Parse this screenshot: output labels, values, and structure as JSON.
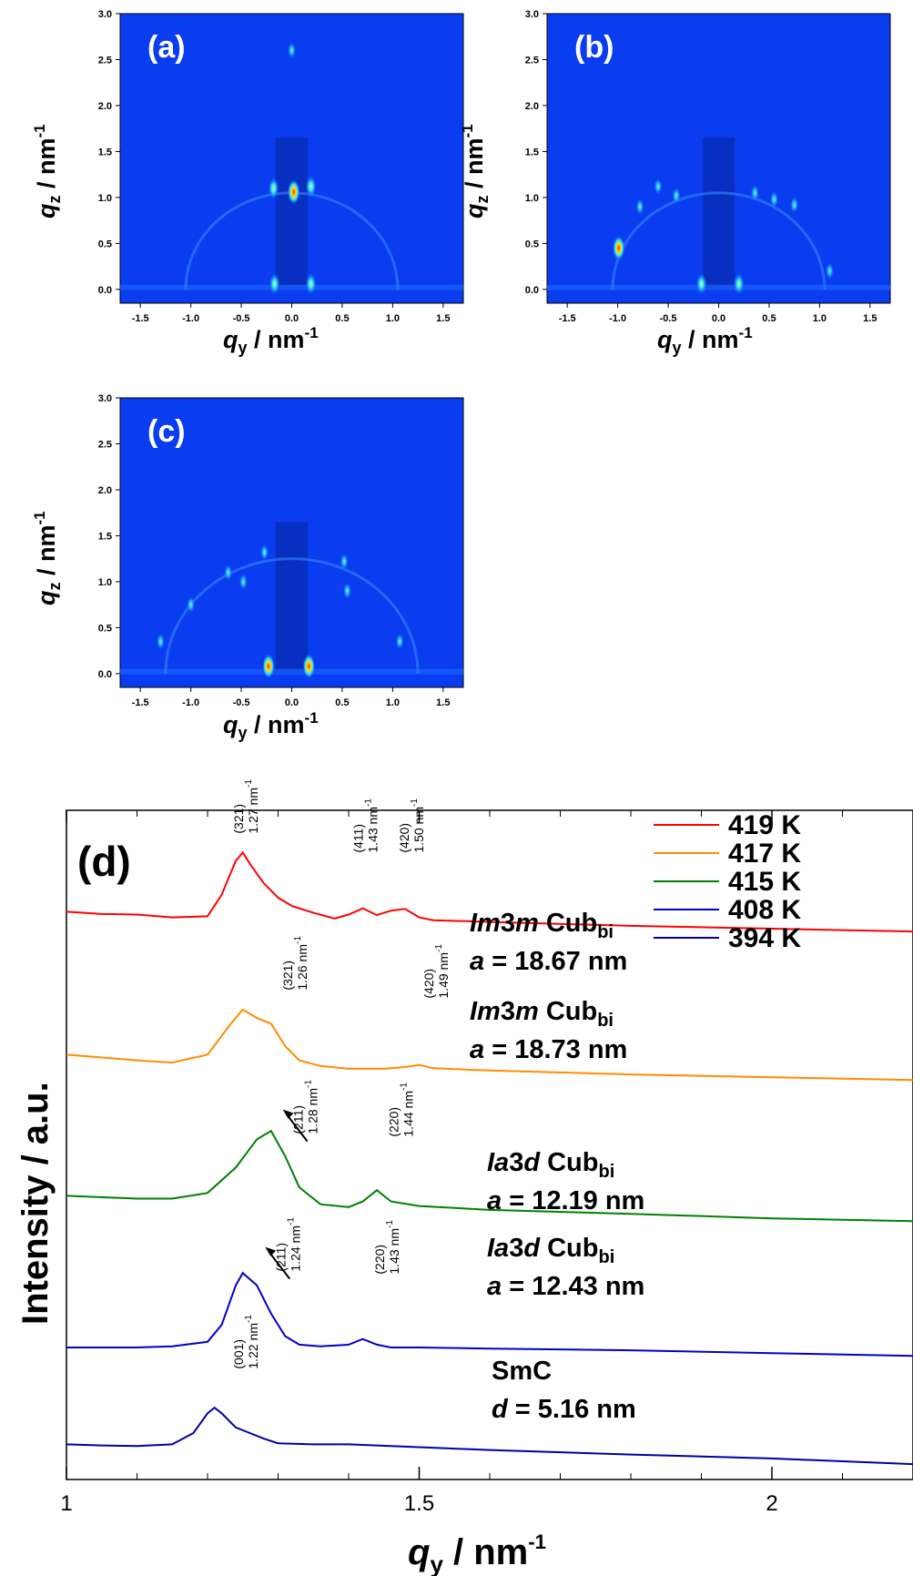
{
  "colors": {
    "heatmap_background": "#0a3cf0",
    "series": [
      "#ff0000",
      "#ff8c00",
      "#008000",
      "#0000cc",
      "#0000a0"
    ]
  },
  "gisaxs_panels": [
    {
      "tag": "(a)",
      "x_axis_label": "q",
      "x_axis_sub": "y",
      "x_axis_unit": " / nm",
      "x_axis_sup": "-1",
      "y_axis_label": "q",
      "y_axis_sub": "z",
      "y_axis_unit": " / nm",
      "y_axis_sup": "-1",
      "x_ticks": [
        "-1.5",
        "-1.0",
        "-0.5",
        "0.0",
        "0.5",
        "1.0",
        "1.5"
      ],
      "y_ticks": [
        "0.0",
        "0.5",
        "1.0",
        "1.5",
        "2.0",
        "2.5",
        "3.0"
      ],
      "xlim": [
        -1.7,
        1.7
      ],
      "ylim": [
        -0.15,
        3.0
      ],
      "spots": [
        {
          "qy": 0.02,
          "qz": 1.06,
          "intensity": "peak"
        },
        {
          "qy": -0.18,
          "qz": 1.1,
          "intensity": "high"
        },
        {
          "qy": 0.19,
          "qz": 1.12,
          "intensity": "high"
        },
        {
          "qy": -0.17,
          "qz": 0.06,
          "intensity": "high"
        },
        {
          "qy": 0.19,
          "qz": 0.06,
          "intensity": "high"
        },
        {
          "qy": 0.0,
          "qz": 2.6,
          "intensity": "medium"
        }
      ]
    },
    {
      "tag": "(b)",
      "x_axis_label": "q",
      "x_axis_sub": "y",
      "x_axis_unit": " / nm",
      "x_axis_sup": "-1",
      "y_axis_label": "q",
      "y_axis_sub": "z",
      "y_axis_unit": " / nm",
      "y_axis_sup": "-1",
      "x_ticks": [
        "-1.5",
        "-1.0",
        "-0.5",
        "0.0",
        "0.5",
        "1.0",
        "1.5"
      ],
      "y_ticks": [
        "0.0",
        "0.5",
        "1.0",
        "1.5",
        "2.0",
        "2.5",
        "3.0"
      ],
      "xlim": [
        -1.7,
        1.7
      ],
      "ylim": [
        -0.15,
        3.0
      ],
      "spots": [
        {
          "qy": -0.99,
          "qz": 0.45,
          "intensity": "peak"
        },
        {
          "qy": -0.78,
          "qz": 0.9,
          "intensity": "medium"
        },
        {
          "qy": -0.6,
          "qz": 1.12,
          "intensity": "medium"
        },
        {
          "qy": -0.42,
          "qz": 1.02,
          "intensity": "medium"
        },
        {
          "qy": 0.36,
          "qz": 1.05,
          "intensity": "medium"
        },
        {
          "qy": 0.55,
          "qz": 0.98,
          "intensity": "medium"
        },
        {
          "qy": 0.75,
          "qz": 0.92,
          "intensity": "medium"
        },
        {
          "qy": 1.1,
          "qz": 0.2,
          "intensity": "medium"
        },
        {
          "qy": -0.17,
          "qz": 0.06,
          "intensity": "high"
        },
        {
          "qy": 0.2,
          "qz": 0.06,
          "intensity": "high"
        }
      ]
    },
    {
      "tag": "(c)",
      "x_axis_label": "q",
      "x_axis_sub": "y",
      "x_axis_unit": " / nm",
      "x_axis_sup": "-1",
      "y_axis_label": "q",
      "y_axis_sub": "z",
      "y_axis_unit": " / nm",
      "y_axis_sup": "-1",
      "x_ticks": [
        "-1.5",
        "-1.0",
        "-0.5",
        "0.0",
        "0.5",
        "1.0",
        "1.5"
      ],
      "y_ticks": [
        "0.0",
        "0.5",
        "1.0",
        "1.5",
        "2.0",
        "2.5",
        "3.0"
      ],
      "xlim": [
        -1.7,
        1.7
      ],
      "ylim": [
        -0.15,
        3.0
      ],
      "spots": [
        {
          "qy": -0.23,
          "qz": 0.08,
          "intensity": "peak"
        },
        {
          "qy": 0.17,
          "qz": 0.08,
          "intensity": "peak"
        },
        {
          "qy": -0.27,
          "qz": 1.32,
          "intensity": "medium"
        },
        {
          "qy": 0.52,
          "qz": 1.22,
          "intensity": "medium"
        },
        {
          "qy": -0.48,
          "qz": 1.0,
          "intensity": "medium"
        },
        {
          "qy": -0.63,
          "qz": 1.1,
          "intensity": "medium"
        },
        {
          "qy": -1.0,
          "qz": 0.75,
          "intensity": "medium"
        },
        {
          "qy": 0.55,
          "qz": 0.9,
          "intensity": "medium"
        },
        {
          "qy": 1.07,
          "qz": 0.35,
          "intensity": "medium"
        },
        {
          "qy": -1.3,
          "qz": 0.35,
          "intensity": "medium"
        }
      ]
    }
  ],
  "chart_data": {
    "type": "line",
    "panel_tag": "(d)",
    "xlabel": "q",
    "xlabel_sub": "y",
    "xlabel_unit": " / nm",
    "xlabel_sup": "-1",
    "ylabel": "Intensity / a.u.",
    "xlim": [
      1.0,
      2.2
    ],
    "x_ticks": [
      "1",
      "1.5",
      "2"
    ],
    "legend_position": "top-right",
    "series": [
      {
        "name": "419 K",
        "offset": 4,
        "x": [
          1.0,
          1.05,
          1.1,
          1.15,
          1.2,
          1.22,
          1.24,
          1.25,
          1.26,
          1.28,
          1.3,
          1.32,
          1.35,
          1.38,
          1.4,
          1.42,
          1.44,
          1.46,
          1.48,
          1.5,
          1.52,
          1.6,
          1.8,
          2.0,
          2.2
        ],
        "y": [
          0.3,
          0.26,
          0.25,
          0.2,
          0.22,
          0.6,
          1.2,
          1.35,
          1.15,
          0.8,
          0.55,
          0.4,
          0.28,
          0.18,
          0.25,
          0.36,
          0.24,
          0.32,
          0.35,
          0.2,
          0.15,
          0.12,
          0.05,
          0.0,
          -0.05
        ]
      },
      {
        "name": "417 K",
        "offset": 3,
        "x": [
          1.0,
          1.1,
          1.15,
          1.2,
          1.23,
          1.25,
          1.27,
          1.29,
          1.31,
          1.33,
          1.36,
          1.4,
          1.45,
          1.48,
          1.5,
          1.52,
          1.6,
          1.8,
          2.0,
          2.2
        ],
        "y": [
          0.3,
          0.2,
          0.16,
          0.3,
          0.8,
          1.1,
          0.95,
          0.85,
          0.45,
          0.2,
          0.1,
          0.05,
          0.05,
          0.08,
          0.12,
          0.06,
          0.02,
          -0.05,
          -0.1,
          -0.15
        ]
      },
      {
        "name": "415 K",
        "offset": 2,
        "x": [
          1.0,
          1.1,
          1.15,
          1.2,
          1.24,
          1.27,
          1.29,
          1.31,
          1.33,
          1.36,
          1.4,
          1.42,
          1.44,
          1.46,
          1.5,
          1.6,
          1.8,
          2.0,
          2.2
        ],
        "y": [
          0.3,
          0.25,
          0.25,
          0.35,
          0.8,
          1.3,
          1.45,
          1.0,
          0.45,
          0.15,
          0.1,
          0.2,
          0.4,
          0.2,
          0.12,
          0.05,
          -0.02,
          -0.1,
          -0.15
        ]
      },
      {
        "name": "408 K",
        "offset": 1,
        "x": [
          1.0,
          1.1,
          1.15,
          1.2,
          1.22,
          1.24,
          1.25,
          1.27,
          1.29,
          1.31,
          1.33,
          1.36,
          1.4,
          1.42,
          1.44,
          1.46,
          1.5,
          1.6,
          1.8,
          2.0,
          2.2
        ],
        "y": [
          0.0,
          0.0,
          0.02,
          0.1,
          0.4,
          1.1,
          1.32,
          1.1,
          0.6,
          0.2,
          0.05,
          0.02,
          0.05,
          0.15,
          0.05,
          0.0,
          0.0,
          -0.02,
          -0.05,
          -0.1,
          -0.15
        ]
      },
      {
        "name": "394 K",
        "offset": 0,
        "x": [
          1.0,
          1.05,
          1.1,
          1.15,
          1.18,
          1.2,
          1.21,
          1.22,
          1.24,
          1.26,
          1.28,
          1.3,
          1.35,
          1.4,
          1.5,
          1.6,
          1.8,
          2.0,
          2.1,
          2.2
        ],
        "y": [
          0.3,
          0.28,
          0.27,
          0.3,
          0.5,
          0.85,
          0.95,
          0.85,
          0.6,
          0.5,
          0.4,
          0.32,
          0.3,
          0.3,
          0.25,
          0.2,
          0.12,
          0.05,
          0.0,
          -0.05
        ]
      }
    ],
    "phase_labels": [
      {
        "series": "419 K",
        "phase_italic": "Im",
        "phase_num": "3",
        "phase_italic2": "m",
        "phase_rest": " Cub",
        "phase_sub": "bi",
        "param_italic": "a",
        "param_rest": " = 18.67 nm"
      },
      {
        "series": "417 K",
        "phase_italic": "Im",
        "phase_num": "3",
        "phase_italic2": "m",
        "phase_rest": " Cub",
        "phase_sub": "bi",
        "param_italic": "a",
        "param_rest": " = 18.73 nm"
      },
      {
        "series": "415 K",
        "phase_italic": "Ia",
        "phase_num": "3",
        "phase_italic2": "d",
        "phase_rest": " Cub",
        "phase_sub": "bi",
        "param_italic": "a",
        "param_rest": " = 12.19 nm"
      },
      {
        "series": "408 K",
        "phase_italic": "Ia",
        "phase_num": "3",
        "phase_italic2": "d",
        "phase_rest": " Cub",
        "phase_sub": "bi",
        "param_italic": "a",
        "param_rest": " = 12.43 nm"
      },
      {
        "series": "394 K",
        "phase_italic": "",
        "phase_num": "",
        "phase_italic2": "",
        "phase_rest": "SmC",
        "phase_sub": "",
        "param_italic": "d",
        "param_rest": " = 5.16 nm"
      }
    ],
    "peak_annotations": [
      {
        "series": "419 K",
        "x": 1.25,
        "y_frac": 1.0,
        "hkl": "(321)",
        "q": "1.27 nm",
        "sup": "-1"
      },
      {
        "series": "419 K",
        "x": 1.42,
        "y_frac": 0.3,
        "hkl": "(411)",
        "q": "1.43 nm",
        "sup": "-1"
      },
      {
        "series": "419 K",
        "x": 1.485,
        "y_frac": 0.3,
        "hkl": "(420)",
        "q": "1.50 nm",
        "sup": "-1"
      },
      {
        "series": "417 K",
        "x": 1.32,
        "y_frac": 0.5,
        "hkl": "(321)",
        "q": "1.26 nm",
        "sup": "-1"
      },
      {
        "series": "417 K",
        "x": 1.52,
        "y_frac": 0.2,
        "hkl": "(420)",
        "q": "1.49 nm",
        "sup": "-1"
      },
      {
        "series": "415 K",
        "x": 1.335,
        "y_frac": 0.4,
        "hkl": "(211)",
        "q": "1.28 nm",
        "sup": "-1",
        "arrow": true
      },
      {
        "series": "415 K",
        "x": 1.47,
        "y_frac": 0.3,
        "hkl": "(220)",
        "q": "1.44 nm",
        "sup": "-1"
      },
      {
        "series": "408 K",
        "x": 1.31,
        "y_frac": 0.3,
        "hkl": "(211)",
        "q": "1.24 nm",
        "sup": "-1",
        "arrow": true
      },
      {
        "series": "408 K",
        "x": 1.45,
        "y_frac": 0.2,
        "hkl": "(220)",
        "q": "1.43 nm",
        "sup": "-1"
      },
      {
        "series": "394 K",
        "x": 1.25,
        "y_frac": 0.9,
        "hkl": "(001)",
        "q": "1.22 nm",
        "sup": "-1"
      }
    ]
  }
}
